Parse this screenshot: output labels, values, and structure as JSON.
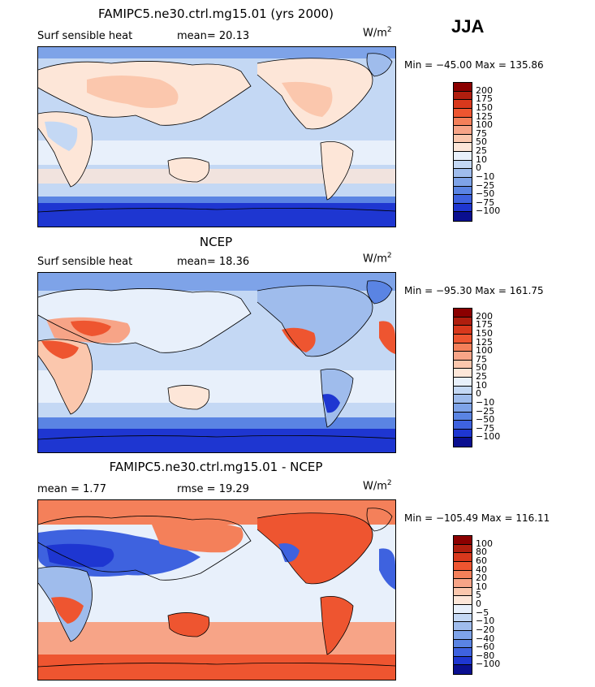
{
  "season": "JJA",
  "units_base": "W/m",
  "units_exp": "2",
  "panels": [
    {
      "title": "FAMIPC5.ne30.ctrl.mg15.01 (yrs 2000)",
      "left_label": "Surf sensible heat",
      "mid_label": "mean=  20.13",
      "minmax": "Min = −45.00 Max = 135.86",
      "levels": [
        "200",
        "175",
        "150",
        "125",
        "100",
        "75",
        "50",
        "25",
        "10",
        "0",
        "−10",
        "−25",
        "−50",
        "−75",
        "−100"
      ],
      "colors": [
        "#8b0000",
        "#b01e0e",
        "#d8381c",
        "#ee5530",
        "#f4805a",
        "#f7a487",
        "#fbc7ad",
        "#fde6d8",
        "#e8f0fb",
        "#c4d8f4",
        "#9fbcec",
        "#7ea3e8",
        "#5a84e3",
        "#3e62df",
        "#1e36d1",
        "#0a0f90"
      ]
    },
    {
      "title": "NCEP",
      "left_label": "Surf sensible heat",
      "mid_label": "mean=  18.36",
      "minmax": "Min = −95.30 Max = 161.75",
      "levels": [
        "200",
        "175",
        "150",
        "125",
        "100",
        "75",
        "50",
        "25",
        "10",
        "0",
        "−10",
        "−25",
        "−50",
        "−75",
        "−100"
      ],
      "colors": [
        "#8b0000",
        "#b01e0e",
        "#d8381c",
        "#ee5530",
        "#f4805a",
        "#f7a487",
        "#fbc7ad",
        "#fde6d8",
        "#e8f0fb",
        "#c4d8f4",
        "#9fbcec",
        "#7ea3e8",
        "#5a84e3",
        "#3e62df",
        "#1e36d1",
        "#0a0f90"
      ]
    },
    {
      "title": "FAMIPC5.ne30.ctrl.mg15.01 - NCEP",
      "left_label": "mean =   1.77",
      "mid_label": "rmse =  19.29",
      "minmax": "Min = −105.49 Max = 116.11",
      "levels": [
        "100",
        "80",
        "60",
        "40",
        "20",
        "10",
        "5",
        "0",
        "−5",
        "−10",
        "−20",
        "−40",
        "−60",
        "−80",
        "−100"
      ],
      "colors": [
        "#8b0000",
        "#b01e0e",
        "#d8381c",
        "#ee5530",
        "#f4805a",
        "#f7a487",
        "#fbc7ad",
        "#fde6d8",
        "#e8f0fb",
        "#c4d8f4",
        "#9fbcec",
        "#7ea3e8",
        "#5a84e3",
        "#3e62df",
        "#1e36d1",
        "#0a0f90"
      ]
    }
  ],
  "chart_data": [
    {
      "type": "heatmap",
      "title": "FAMIPC5.ne30.ctrl.mg15.01 (yrs 2000)",
      "variable": "Surf sensible heat",
      "mean": 20.13,
      "min": -45.0,
      "max": 135.86,
      "units": "W/m2",
      "contour_levels": [
        200,
        175,
        150,
        125,
        100,
        75,
        50,
        25,
        10,
        0,
        -10,
        -25,
        -50,
        -75,
        -100
      ]
    },
    {
      "type": "heatmap",
      "title": "NCEP",
      "variable": "Surf sensible heat",
      "mean": 18.36,
      "min": -95.3,
      "max": 161.75,
      "units": "W/m2",
      "contour_levels": [
        200,
        175,
        150,
        125,
        100,
        75,
        50,
        25,
        10,
        0,
        -10,
        -25,
        -50,
        -75,
        -100
      ]
    },
    {
      "type": "heatmap",
      "title": "FAMIPC5.ne30.ctrl.mg15.01 - NCEP",
      "mean": 1.77,
      "rmse": 19.29,
      "min": -105.49,
      "max": 116.11,
      "units": "W/m2",
      "contour_levels": [
        100,
        80,
        60,
        40,
        20,
        10,
        5,
        0,
        -5,
        -10,
        -20,
        -40,
        -60,
        -80,
        -100
      ]
    }
  ]
}
